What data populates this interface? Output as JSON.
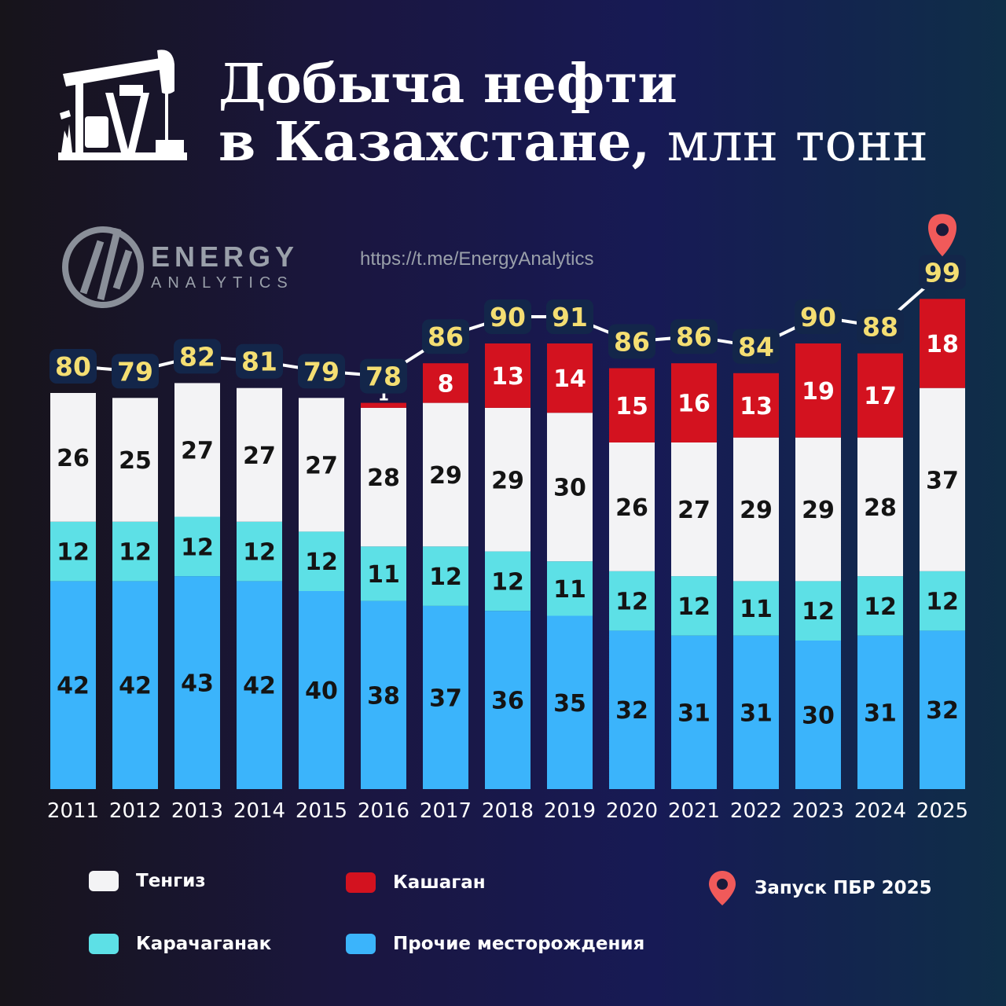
{
  "header": {
    "title_line1": "Добыча нефти",
    "title_line2_main": "в Казахстане,",
    "title_line2_unit": " млн тонн"
  },
  "brand": {
    "name": "ENERGY",
    "sub": "ANALYTICS",
    "url": "https://t.me/EnergyAnalytics"
  },
  "chart_data": {
    "type": "bar",
    "stacked": true,
    "title": "Добыча нефти в Казахстане, млн тонн",
    "categories": [
      "2011",
      "2012",
      "2013",
      "2014",
      "2015",
      "2016",
      "2017",
      "2018",
      "2019",
      "2020",
      "2021",
      "2022",
      "2023",
      "2024",
      "2025"
    ],
    "series": [
      {
        "name": "Прочие месторождения",
        "color": "#3bb4fb",
        "values": [
          42,
          42,
          43,
          42,
          40,
          38,
          37,
          36,
          35,
          32,
          31,
          31,
          30,
          31,
          32
        ]
      },
      {
        "name": "Карачаганак",
        "color": "#5de0e6",
        "values": [
          12,
          12,
          12,
          12,
          12,
          11,
          12,
          12,
          11,
          12,
          12,
          11,
          12,
          12,
          12
        ]
      },
      {
        "name": "Тенгиз",
        "color": "#f3f3f5",
        "values": [
          26,
          25,
          27,
          27,
          27,
          28,
          29,
          29,
          30,
          26,
          27,
          29,
          29,
          28,
          37
        ]
      },
      {
        "name": "Кашаган",
        "color": "#d3121f",
        "values": [
          0,
          0,
          0,
          0,
          0,
          1,
          8,
          13,
          14,
          15,
          16,
          13,
          19,
          17,
          18
        ]
      }
    ],
    "totals": [
      80,
      79,
      82,
      81,
      79,
      78,
      86,
      90,
      91,
      86,
      86,
      84,
      90,
      88,
      99
    ],
    "ylim": [
      0,
      100
    ],
    "xlabel": "",
    "ylabel": "",
    "marker": {
      "category": "2025",
      "label": "Запуск ПБР 2025"
    }
  },
  "legend": [
    {
      "label": "Тенгиз",
      "color": "#f3f3f5"
    },
    {
      "label": "Кашаган",
      "color": "#d3121f"
    },
    {
      "label": "Карачаганак",
      "color": "#5de0e6"
    },
    {
      "label": "Прочие месторождения",
      "color": "#3bb4fb"
    },
    {
      "label": "Запуск ПБР 2025",
      "icon": "map-pin-icon"
    }
  ],
  "colors": {
    "total_text": "#f4de72",
    "total_bg": "#13264a",
    "pin": "#f05a5a",
    "trend_line": "#ffffff"
  }
}
